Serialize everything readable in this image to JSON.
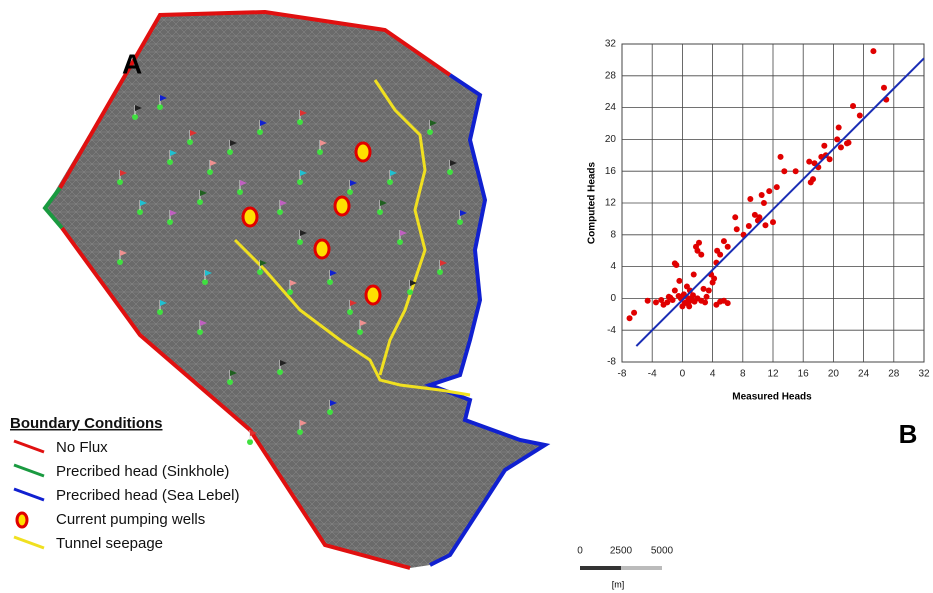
{
  "map": {
    "label": "A",
    "legend": {
      "title": "Boundary Conditions",
      "items": [
        "No Flux",
        "Precribed head (Sinkhole)",
        "Precribed head (Sea Lebel)",
        "Current pumping wells",
        "Tunnel seepage"
      ]
    },
    "scale": {
      "ticks": [
        "0",
        "2500",
        "5000"
      ],
      "unit": "[m]"
    }
  },
  "chart_data": {
    "type": "scatter",
    "label": "B",
    "x_label": "Measured Heads",
    "y_label": "Computed Heads",
    "grid": true,
    "xlim": [
      -8,
      32
    ],
    "ylim": [
      -8,
      32
    ],
    "xticks": [
      -8,
      -4,
      0,
      4,
      8,
      12,
      16,
      20,
      24,
      28,
      32
    ],
    "yticks": [
      -8,
      -4,
      0,
      4,
      8,
      12,
      16,
      20,
      24,
      28,
      32
    ],
    "series": [
      {
        "type": "scatter",
        "color": "#e00000",
        "x": [
          25.3,
          26.7,
          27,
          22.6,
          23.5,
          22,
          21.8,
          21,
          20.7,
          20.5,
          19.5,
          19,
          18.4,
          18,
          17.5,
          17.3,
          18.8,
          17,
          15,
          16.8,
          13.5,
          13,
          12.5,
          11.5,
          12,
          11,
          10.8,
          10.5,
          10.2,
          10,
          9.6,
          9,
          8.8,
          8.1,
          7.2,
          7,
          6,
          5.5,
          5,
          4.5,
          4.2,
          4,
          3.5,
          3,
          2.5,
          2,
          2.2,
          1.8,
          1.5,
          1,
          0.8,
          0.5,
          0.2,
          0,
          -0.2,
          -0.5,
          -0.8,
          -1,
          -1,
          -1.3,
          -1.6,
          -2,
          -2.5,
          -2.8,
          -3.5,
          -6.4,
          -7,
          -4.6,
          1.2,
          0.8,
          2.5,
          3.2,
          5.5,
          6,
          5,
          4.5,
          0.3,
          1.6,
          2,
          1.4,
          0.6,
          -0.4,
          0.9,
          3.8,
          4.6,
          2.8,
          -1.8,
          0.1
        ],
        "values": [
          31.1,
          26.5,
          25,
          24.2,
          23,
          19.6,
          19.5,
          19,
          21.5,
          20,
          17.5,
          18,
          17.8,
          16.5,
          17,
          15,
          19.2,
          14.6,
          16,
          17.2,
          16,
          17.8,
          14,
          13.5,
          9.6,
          9.2,
          12,
          13,
          10.2,
          9.8,
          10.5,
          12.5,
          9.1,
          8,
          8.7,
          10.2,
          6.5,
          7.2,
          5.5,
          4.5,
          2.5,
          2,
          1,
          -0.5,
          5.5,
          6,
          7,
          6.5,
          3,
          1,
          0,
          -0.5,
          0.5,
          -1,
          0,
          0.3,
          4.2,
          4.4,
          1,
          -0.2,
          0.1,
          -0.5,
          -0.8,
          -0.2,
          -0.5,
          -1.8,
          -2.5,
          -0.3,
          -0.2,
          -0.7,
          -0.3,
          0.2,
          -0.3,
          -0.6,
          -0.4,
          -0.8,
          -0.6,
          -0.4,
          0,
          0.4,
          1.5,
          2.2,
          -1,
          3,
          6,
          1.2,
          0.2,
          0.2
        ]
      },
      {
        "type": "line",
        "color": "#1a2db5",
        "x": [
          -6.1,
          32
        ],
        "values": [
          -6,
          30.2
        ]
      }
    ]
  }
}
